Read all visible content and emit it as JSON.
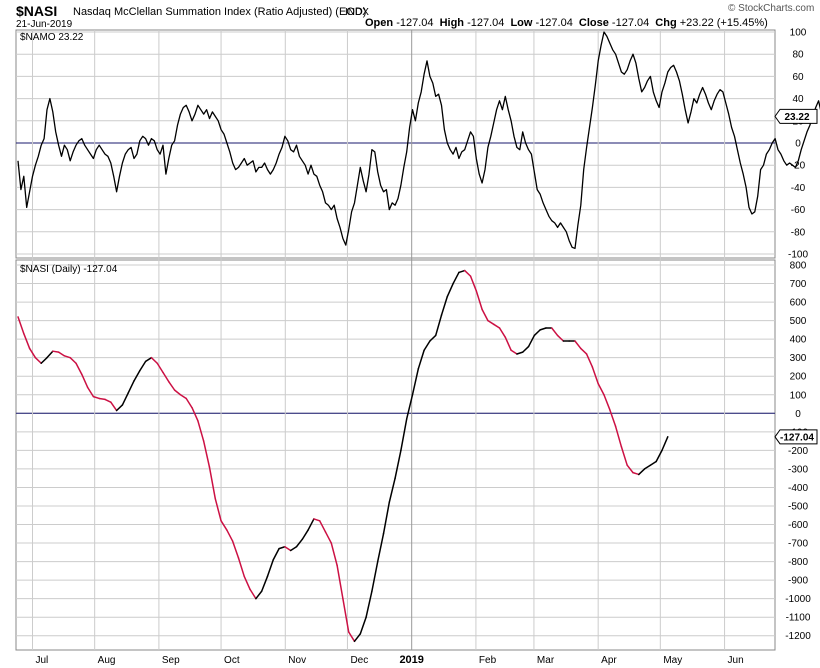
{
  "header": {
    "symbol": "$NASI",
    "description": "Nasdaq McClellan Summation Index (Ratio Adjusted) (EOD)",
    "exchange": "INDX",
    "date": "21-Jun-2019",
    "open_label": "Open",
    "open_value": "-127.04",
    "high_label": "High",
    "high_value": "-127.04",
    "low_label": "Low",
    "low_value": "-127.04",
    "close_label": "Close",
    "close_value": "-127.04",
    "chg_label": "Chg",
    "chg_value": "+23.22 (+15.45%)",
    "watermark": "© StockCharts.com"
  },
  "chart_data": [
    {
      "type": "line",
      "panel_label": "$NAMO 23.22",
      "series_name": "$NAMO",
      "last_value_label": "23.22",
      "ylim": [
        -100,
        100
      ],
      "yticks": [
        100,
        80,
        60,
        40,
        20,
        0,
        -20,
        -40,
        -60,
        -80,
        -100
      ],
      "reference_line": 0,
      "x_start": "2018-06-25",
      "x_end": "2019-06-21",
      "x_step_days": 1.4,
      "values": [
        -16,
        -42,
        -30,
        -58,
        -44,
        -30,
        -20,
        -12,
        -2,
        4,
        30,
        40,
        28,
        10,
        -2,
        -12,
        -2,
        -6,
        -16,
        -8,
        -2,
        2,
        4,
        -2,
        -6,
        -10,
        -14,
        -6,
        -2,
        -6,
        -10,
        -12,
        -18,
        -30,
        -44,
        -30,
        -18,
        -10,
        -6,
        -4,
        -14,
        -10,
        2,
        6,
        4,
        -2,
        4,
        2,
        -6,
        -10,
        -2,
        -28,
        -14,
        -2,
        2,
        16,
        26,
        32,
        34,
        28,
        20,
        26,
        34,
        30,
        26,
        30,
        22,
        28,
        24,
        20,
        12,
        8,
        0,
        -8,
        -18,
        -24,
        -22,
        -18,
        -14,
        -20,
        -18,
        -16,
        -26,
        -22,
        -22,
        -18,
        -24,
        -28,
        -24,
        -18,
        -10,
        -4,
        6,
        2,
        -6,
        -8,
        -2,
        -12,
        -16,
        -20,
        -28,
        -20,
        -28,
        -30,
        -38,
        -44,
        -54,
        -56,
        -60,
        -56,
        -68,
        -76,
        -86,
        -92,
        -78,
        -62,
        -54,
        -38,
        -22,
        -34,
        -44,
        -28,
        -6,
        -8,
        -26,
        -38,
        -44,
        -42,
        -60,
        -54,
        -56,
        -50,
        -38,
        -22,
        -8,
        14,
        30,
        20,
        36,
        46,
        62,
        74,
        60,
        54,
        42,
        44,
        34,
        12,
        0,
        -6,
        -10,
        -4,
        -14,
        -8,
        -6,
        2,
        10,
        6,
        -14,
        -28,
        -36,
        -24,
        -4,
        6,
        18,
        30,
        38,
        30,
        42,
        30,
        20,
        6,
        -4,
        -6,
        10,
        0,
        -6,
        -10,
        -26,
        -42,
        -46,
        -54,
        -60,
        -66,
        -70,
        -72,
        -76,
        -72,
        -76,
        -80,
        -88,
        -94,
        -95,
        -74,
        -56,
        -24,
        -4,
        14,
        32,
        52,
        74,
        88,
        100,
        96,
        90,
        84,
        80,
        72,
        64,
        62,
        66,
        74,
        80,
        72,
        58,
        46,
        50,
        56,
        60,
        46,
        38,
        32,
        46,
        54,
        64,
        68,
        70,
        64,
        56,
        44,
        30,
        18,
        28,
        40,
        36,
        44,
        50,
        44,
        36,
        30,
        38,
        44,
        48,
        46,
        36,
        26,
        14,
        6,
        -6,
        -18,
        -28,
        -40,
        -58,
        -64,
        -62,
        -48,
        -24,
        -20,
        -10,
        -6,
        0,
        4,
        -6,
        -10,
        -16,
        -20,
        -18,
        -20,
        -22,
        -16,
        -6,
        2,
        10,
        16,
        24,
        32,
        38,
        26,
        20,
        14,
        8,
        4,
        8,
        12,
        10,
        6,
        2,
        -4,
        -10,
        -14,
        -6,
        -2,
        4,
        8,
        10,
        12,
        6,
        -4,
        -14,
        -24,
        -30,
        -38,
        -36,
        -32,
        -22,
        -16,
        -8,
        -12,
        -20,
        -26,
        -34,
        -38,
        -44,
        -48,
        -52,
        -56,
        -60,
        -58,
        -42,
        -38,
        -32,
        -26,
        -20,
        -14,
        8,
        14,
        20,
        24,
        22,
        12,
        14,
        6,
        10,
        14,
        24,
        30,
        40,
        36,
        24
      ],
      "color": "#000000"
    },
    {
      "type": "line",
      "panel_label": "$NASI (Daily) -127.04",
      "series_name": "$NASI",
      "last_value_label": "-127.04",
      "ylim": [
        -1250,
        800
      ],
      "yticks": [
        800,
        700,
        600,
        500,
        400,
        300,
        200,
        100,
        0,
        -100,
        -200,
        -300,
        -400,
        -500,
        -600,
        -700,
        -800,
        -900,
        -1000,
        -1100,
        -1200
      ],
      "reference_line": 0,
      "x_start": "2018-06-25",
      "x_end": "2019-06-21",
      "x_step_days": 2.8,
      "values": [
        520,
        430,
        350,
        300,
        270,
        300,
        335,
        330,
        310,
        300,
        270,
        210,
        140,
        90,
        80,
        75,
        60,
        15,
        45,
        110,
        175,
        230,
        280,
        300,
        270,
        220,
        170,
        125,
        100,
        80,
        30,
        -40,
        -150,
        -290,
        -460,
        -580,
        -630,
        -690,
        -780,
        -880,
        -950,
        -1000,
        -960,
        -880,
        -790,
        -730,
        -720,
        -740,
        -720,
        -680,
        -630,
        -570,
        -580,
        -640,
        -700,
        -820,
        -1000,
        -1180,
        -1230,
        -1190,
        -1100,
        -960,
        -800,
        -650,
        -480,
        -350,
        -200,
        -30,
        100,
        240,
        340,
        390,
        420,
        530,
        630,
        700,
        760,
        770,
        740,
        660,
        560,
        500,
        480,
        460,
        410,
        340,
        320,
        330,
        360,
        420,
        450,
        460,
        460,
        420,
        390,
        390,
        390,
        350,
        320,
        250,
        160,
        100,
        20,
        -70,
        -180,
        -280,
        -320,
        -330,
        -300,
        -280,
        -260,
        -200,
        -127
      ],
      "color_rising": "#000000",
      "color_falling": "#cc1144"
    }
  ],
  "x_axis": {
    "labels": [
      {
        "text": "Jul",
        "date": "2018-07-02",
        "bold": false
      },
      {
        "text": "Aug",
        "date": "2018-08-01",
        "bold": false
      },
      {
        "text": "Sep",
        "date": "2018-09-01",
        "bold": false
      },
      {
        "text": "Oct",
        "date": "2018-10-01",
        "bold": false
      },
      {
        "text": "Nov",
        "date": "2018-11-01",
        "bold": false
      },
      {
        "text": "Dec",
        "date": "2018-12-01",
        "bold": false
      },
      {
        "text": "2019",
        "date": "2019-01-01",
        "bold": true
      },
      {
        "text": "Feb",
        "date": "2019-02-01",
        "bold": false
      },
      {
        "text": "Mar",
        "date": "2019-03-01",
        "bold": false
      },
      {
        "text": "Apr",
        "date": "2019-04-01",
        "bold": false
      },
      {
        "text": "May",
        "date": "2019-05-01",
        "bold": false
      },
      {
        "text": "Jun",
        "date": "2019-06-01",
        "bold": false
      }
    ]
  },
  "colors": {
    "grid": "#cccccc",
    "zero_line": "#1a1a6e",
    "year_line": "#999999",
    "frame": "#888888"
  }
}
